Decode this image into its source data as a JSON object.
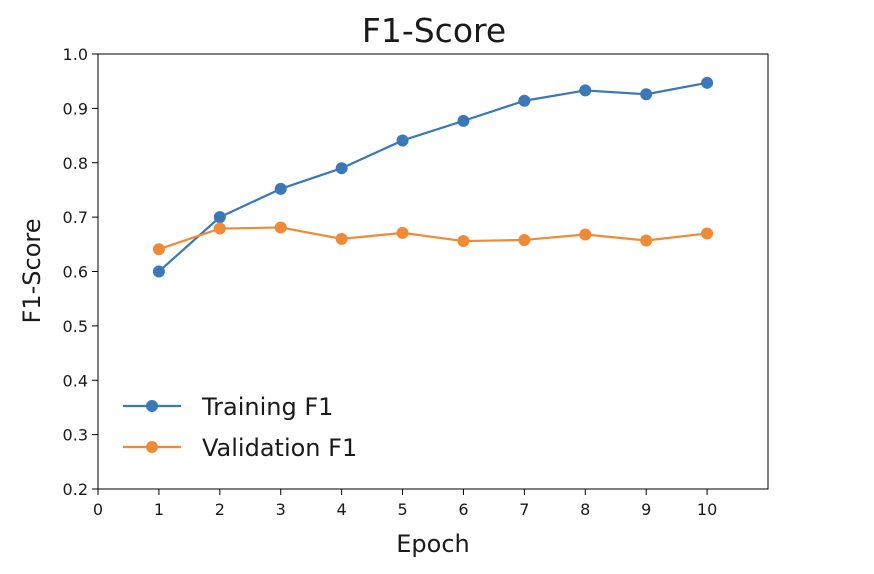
{
  "chart_data": {
    "type": "line",
    "title": "F1-Score",
    "xlabel": "Epoch",
    "ylabel": "F1-Score",
    "x": [
      1,
      2,
      3,
      4,
      5,
      6,
      7,
      8,
      9,
      10
    ],
    "xlim": [
      0,
      11
    ],
    "ylim": [
      0.2,
      1.0
    ],
    "xticks": [
      0,
      1,
      2,
      3,
      4,
      5,
      6,
      7,
      8,
      9,
      10
    ],
    "yticks": [
      0.2,
      0.3,
      0.4,
      0.5,
      0.6,
      0.7,
      0.8,
      0.9,
      1.0
    ],
    "xtick_labels": [
      "0",
      "1",
      "2",
      "3",
      "4",
      "5",
      "6",
      "7",
      "8",
      "9",
      "10"
    ],
    "ytick_labels": [
      "0.2",
      "0.3",
      "0.4",
      "0.5",
      "0.6",
      "0.7",
      "0.8",
      "0.9",
      "1.0"
    ],
    "grid": false,
    "legend_position": "lower-left",
    "series": [
      {
        "name": "Training F1",
        "color": "#3a78b8",
        "marker": "circle",
        "values": [
          0.6,
          0.7,
          0.752,
          0.79,
          0.841,
          0.877,
          0.914,
          0.933,
          0.926,
          0.947
        ]
      },
      {
        "name": "Validation F1",
        "color": "#f08a36",
        "marker": "circle",
        "values": [
          0.641,
          0.679,
          0.681,
          0.66,
          0.671,
          0.656,
          0.658,
          0.668,
          0.657,
          0.67
        ]
      }
    ]
  }
}
